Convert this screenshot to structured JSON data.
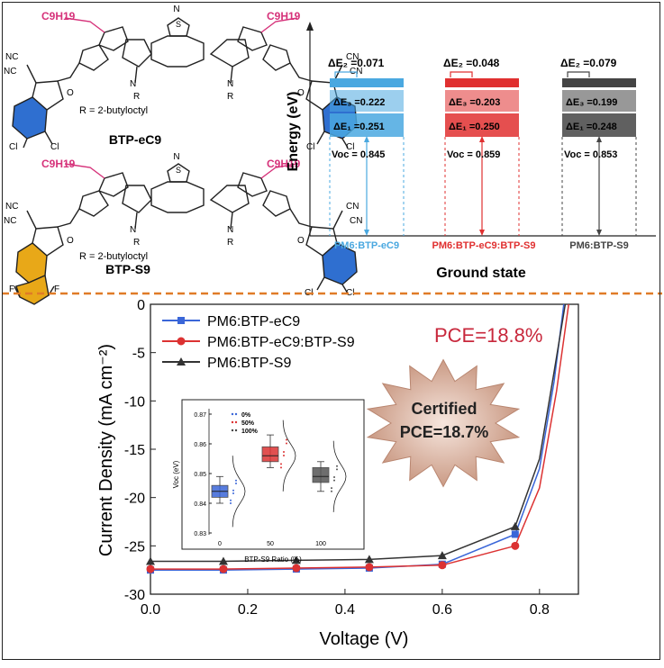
{
  "molecules": {
    "top": {
      "name": "BTP-eC9",
      "side_chain": "C9H19",
      "r_label": "R = 2-butyloctyl",
      "atom_labels": [
        "NC",
        "NC",
        "CN",
        "CN",
        "O",
        "O",
        "S",
        "S",
        "S",
        "S",
        "N",
        "N",
        "N",
        "N",
        "S",
        "R",
        "R",
        "Cl",
        "Cl",
        "Cl",
        "Cl"
      ]
    },
    "bottom": {
      "name": "BTP-S9",
      "side_chain": "C9H19",
      "r_label": "R = 2-butyloctyl",
      "atom_labels": [
        "NC",
        "NC",
        "CN",
        "CN",
        "O",
        "O",
        "F",
        "F",
        "Cl",
        "Cl"
      ]
    }
  },
  "colors": {
    "side_chain": "#d6327a",
    "ring_blue": "#2f6fd0",
    "ring_orange": "#e8a818",
    "divider": "#e07b27",
    "blue": "#3a66d8",
    "red": "#dc3232",
    "black": "#333333",
    "sky": "#4aa8e0",
    "badge_fill": "#cfa897",
    "pce_red": "#c8283c"
  },
  "energy_diagram": {
    "ylabel": "Energy (eV)",
    "xlabel": "Ground state",
    "groups": [
      {
        "label": "PM6:BTP-eC9",
        "color": "#4aa8e0",
        "dE2": "0.071",
        "dE3": "0.222",
        "dE1": "0.251",
        "voc": "0.845"
      },
      {
        "label": "PM6:BTP-eC9:BTP-S9",
        "color": "#e03030",
        "dE2": "0.048",
        "dE3": "0.203",
        "dE1": "0.250",
        "voc": "0.859"
      },
      {
        "label": "PM6:BTP-S9",
        "color": "#444444",
        "dE2": "0.079",
        "dE3": "0.199",
        "dE1": "0.248",
        "voc": "0.853"
      }
    ]
  },
  "chart_data": [
    {
      "type": "line",
      "xlabel": "Voltage (V)",
      "ylabel": "Current Density (mA cm⁻²)",
      "xlim": [
        0.0,
        0.88
      ],
      "ylim": [
        -30,
        0
      ],
      "xticks": [
        "0.0",
        "0.2",
        "0.4",
        "0.6",
        "0.8"
      ],
      "yticks": [
        "0",
        "-5",
        "-10",
        "-15",
        "-20",
        "-25",
        "-30"
      ],
      "legend_position": "top-left",
      "series": [
        {
          "name": "PM6:BTP-eC9",
          "color": "#3a66d8",
          "marker": "square",
          "x": [
            0.0,
            0.15,
            0.3,
            0.45,
            0.6,
            0.75,
            0.8,
            0.83,
            0.85
          ],
          "y": [
            -27.5,
            -27.5,
            -27.4,
            -27.3,
            -26.9,
            -23.8,
            -17.0,
            -8.0,
            0.0
          ]
        },
        {
          "name": "PM6:BTP-eC9:BTP-S9",
          "color": "#dc3232",
          "marker": "circle",
          "x": [
            0.0,
            0.15,
            0.3,
            0.45,
            0.6,
            0.75,
            0.8,
            0.835,
            0.86
          ],
          "y": [
            -27.4,
            -27.4,
            -27.3,
            -27.2,
            -27.0,
            -25.0,
            -19.0,
            -9.0,
            0.0
          ]
        },
        {
          "name": "PM6:BTP-S9",
          "color": "#333333",
          "marker": "triangle",
          "x": [
            0.0,
            0.15,
            0.3,
            0.45,
            0.6,
            0.75,
            0.8,
            0.83,
            0.853
          ],
          "y": [
            -26.6,
            -26.6,
            -26.5,
            -26.4,
            -26.0,
            -23.0,
            -16.0,
            -7.0,
            0.0
          ]
        }
      ],
      "annotations": {
        "pce": "PCE=18.8%",
        "certified_line1": "Certified",
        "certified_line2": "PCE=18.7%"
      }
    },
    {
      "type": "box",
      "xlabel": "BTP-S9 Ratio (%)",
      "ylabel": "Voc (eV)",
      "ylim": [
        0.83,
        0.87
      ],
      "yticks": [
        "0.87",
        "0.86",
        "0.85",
        "0.84",
        "0.83"
      ],
      "categories": [
        "0",
        "50",
        "100"
      ],
      "legend": [
        "0%",
        "50%",
        "100%"
      ],
      "boxes": [
        {
          "category": "0",
          "color": "#3a66d8",
          "q1": 0.842,
          "median": 0.844,
          "q3": 0.846,
          "min": 0.84,
          "max": 0.849
        },
        {
          "category": "50",
          "color": "#dc3232",
          "q1": 0.854,
          "median": 0.856,
          "q3": 0.859,
          "min": 0.852,
          "max": 0.863
        },
        {
          "category": "100",
          "color": "#555555",
          "q1": 0.847,
          "median": 0.849,
          "q3": 0.852,
          "min": 0.844,
          "max": 0.854
        }
      ]
    }
  ]
}
